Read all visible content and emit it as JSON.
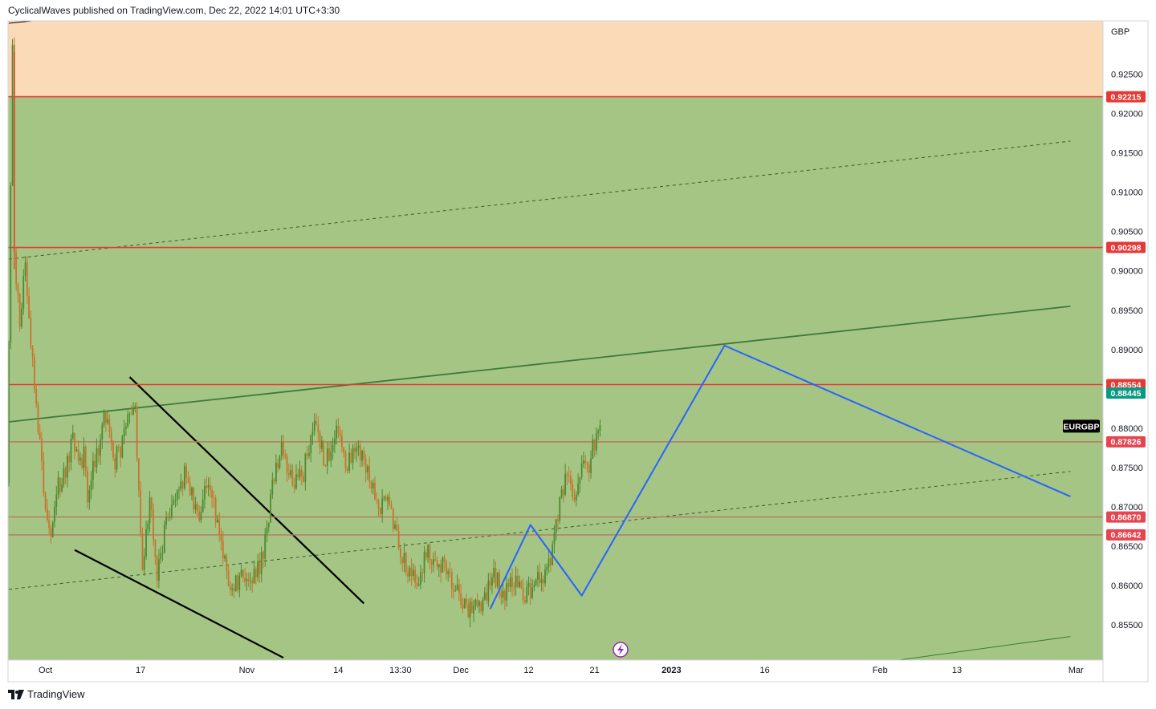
{
  "header": {
    "text": "CyclicalWaves published on TradingView.com, Dec 22, 2022 14:01 UTC+3:30"
  },
  "footer": {
    "brand": "TradingView",
    "logo_icon": "tradingview-logo-icon"
  },
  "colors": {
    "zone_upper": "#fbdbb7",
    "zone_main": "#a5c584",
    "candle_up": "#4c8a2f",
    "candle_down": "#c7742c",
    "resistance_line": "#e53935",
    "support_line": "#b57a62",
    "projection": "#2962ff",
    "trend_channel": "#3e7a3a",
    "wedge_lines": "#000000",
    "current_price": "#089981",
    "symbol_tag": "#000000"
  },
  "chart_data": {
    "type": "candlestick",
    "symbol": "EURGBP",
    "currency": "GBP",
    "ylim": [
      0.8505,
      0.9318
    ],
    "y_ticks": [
      0.855,
      0.86,
      0.865,
      0.87,
      0.875,
      0.88,
      0.885,
      0.89,
      0.895,
      0.9,
      0.905,
      0.91,
      0.915,
      0.92,
      0.925
    ],
    "y_tick_labels": [
      "0.85500",
      "0.86000",
      "0.86500",
      "0.87000",
      "0.87500",
      "0.88000",
      "",
      "0.89000",
      "0.89500",
      "0.90000",
      "0.90500",
      "0.91000",
      "0.91500",
      "0.92000",
      "0.92500"
    ],
    "x_ticks": [
      {
        "bar": 20,
        "label": "Oct",
        "bold": false
      },
      {
        "bar": 72,
        "label": "17",
        "bold": false
      },
      {
        "bar": 130,
        "label": "Nov",
        "bold": false
      },
      {
        "bar": 180,
        "label": "14",
        "bold": false
      },
      {
        "bar": 214,
        "label": "13:30",
        "bold": false
      },
      {
        "bar": 247,
        "label": "Dec",
        "bold": false
      },
      {
        "bar": 284,
        "label": "12",
        "bold": false
      },
      {
        "bar": 320,
        "label": "21",
        "bold": false
      },
      {
        "bar": 362,
        "label": "2023",
        "bold": true
      },
      {
        "bar": 413,
        "label": "16",
        "bold": false
      },
      {
        "bar": 476,
        "label": "Feb",
        "bold": false
      },
      {
        "bar": 518,
        "label": "13",
        "bold": false
      },
      {
        "bar": 583,
        "label": "Mar",
        "bold": false
      }
    ],
    "horizontal_levels": [
      {
        "price": 0.92215,
        "label": "0.92215",
        "kind": "resistance"
      },
      {
        "price": 0.90298,
        "label": "0.90298",
        "kind": "resistance"
      },
      {
        "price": 0.88554,
        "label": "0.88554",
        "kind": "resistance"
      },
      {
        "price": 0.87826,
        "label": "0.87826",
        "kind": "support"
      },
      {
        "price": 0.8687,
        "label": "0.86870",
        "kind": "support"
      },
      {
        "price": 0.86642,
        "label": "0.86642",
        "kind": "support"
      }
    ],
    "current_price": {
      "price": 0.88445,
      "label": "0.88445"
    },
    "symbol_tag": {
      "price": 0.88025,
      "label": "EURGBP"
    },
    "zones": [
      {
        "name": "upper",
        "from": 0.92215,
        "to": 0.9318
      },
      {
        "name": "main",
        "from": 0.8505,
        "to": 0.92215
      }
    ],
    "trendlines": [
      {
        "kind": "wedge",
        "points": [
          [
            0,
            0.9315
          ],
          [
            360,
            0.94
          ]
        ]
      },
      {
        "kind": "channel-upper",
        "points": [
          [
            0,
            0.8808
          ],
          [
            580,
            0.8955
          ]
        ]
      },
      {
        "kind": "channel-lower",
        "points": [
          [
            480,
            0.8503
          ],
          [
            580,
            0.8535
          ]
        ]
      },
      {
        "kind": "channel-mid-dashed",
        "points": [
          [
            0,
            0.9015
          ],
          [
            580,
            0.9165
          ]
        ]
      },
      {
        "kind": "channel-low-dashed",
        "points": [
          [
            0,
            0.8595
          ],
          [
            580,
            0.8745
          ]
        ]
      },
      {
        "kind": "wedge",
        "points": [
          [
            66,
            0.8865
          ],
          [
            194,
            0.8577
          ]
        ]
      },
      {
        "kind": "wedge",
        "points": [
          [
            36,
            0.8645
          ],
          [
            150,
            0.8508
          ]
        ]
      }
    ],
    "projection_path": [
      [
        263,
        0.857
      ],
      [
        285,
        0.8677
      ],
      [
        313,
        0.8587
      ],
      [
        391,
        0.8905
      ],
      [
        580,
        0.8713
      ]
    ],
    "bar_count": 324,
    "seed_points": [
      [
        0,
        0.873
      ],
      [
        3,
        0.9278
      ],
      [
        4,
        0.9015
      ],
      [
        7,
        0.8935
      ],
      [
        10,
        0.9015
      ],
      [
        13,
        0.8905
      ],
      [
        16,
        0.8835
      ],
      [
        20,
        0.872
      ],
      [
        24,
        0.8658
      ],
      [
        28,
        0.8725
      ],
      [
        32,
        0.8745
      ],
      [
        36,
        0.8785
      ],
      [
        40,
        0.8755
      ],
      [
        42,
        0.8765
      ],
      [
        44,
        0.8712
      ],
      [
        47,
        0.8748
      ],
      [
        54,
        0.8818
      ],
      [
        58,
        0.8755
      ],
      [
        62,
        0.8775
      ],
      [
        66,
        0.8805
      ],
      [
        70,
        0.8825
      ],
      [
        74,
        0.8612
      ],
      [
        78,
        0.8712
      ],
      [
        82,
        0.8612
      ],
      [
        86,
        0.8665
      ],
      [
        92,
        0.8718
      ],
      [
        98,
        0.8745
      ],
      [
        104,
        0.8685
      ],
      [
        110,
        0.874
      ],
      [
        116,
        0.8665
      ],
      [
        122,
        0.8595
      ],
      [
        128,
        0.8613
      ],
      [
        134,
        0.8605
      ],
      [
        140,
        0.8635
      ],
      [
        145,
        0.8725
      ],
      [
        150,
        0.8775
      ],
      [
        156,
        0.8728
      ],
      [
        162,
        0.8742
      ],
      [
        168,
        0.8815
      ],
      [
        174,
        0.8755
      ],
      [
        180,
        0.8798
      ],
      [
        186,
        0.8752
      ],
      [
        192,
        0.8775
      ],
      [
        198,
        0.8732
      ],
      [
        204,
        0.8698
      ],
      [
        208,
        0.8718
      ],
      [
        212,
        0.8665
      ],
      [
        218,
        0.8628
      ],
      [
        224,
        0.8605
      ],
      [
        230,
        0.8642
      ],
      [
        236,
        0.8632
      ],
      [
        242,
        0.8612
      ],
      [
        248,
        0.8585
      ],
      [
        254,
        0.8565
      ],
      [
        260,
        0.858
      ],
      [
        266,
        0.8612
      ],
      [
        272,
        0.8588
      ],
      [
        276,
        0.8605
      ],
      [
        280,
        0.8595
      ],
      [
        284,
        0.8588
      ],
      [
        290,
        0.8605
      ],
      [
        296,
        0.8625
      ],
      [
        302,
        0.8702
      ],
      [
        306,
        0.874
      ],
      [
        310,
        0.8705
      ],
      [
        314,
        0.8745
      ],
      [
        318,
        0.8752
      ],
      [
        322,
        0.8795
      ],
      [
        323,
        0.8805
      ]
    ]
  }
}
